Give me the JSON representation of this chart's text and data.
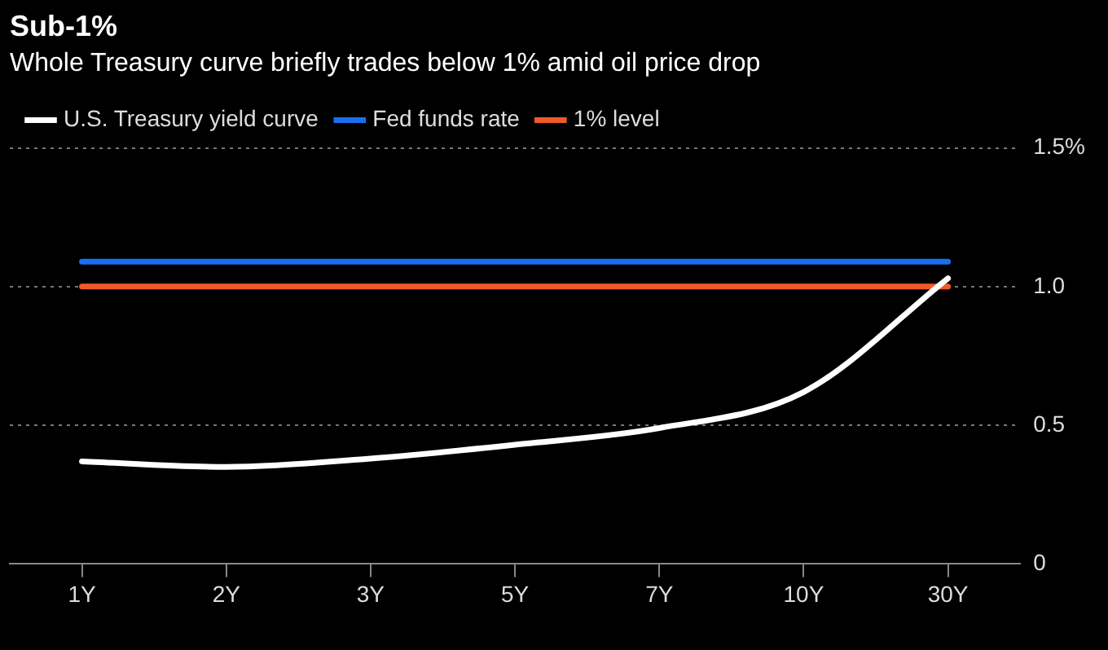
{
  "chart_data": {
    "type": "line",
    "title": "Sub-1%",
    "subtitle": "Whole Treasury curve briefly trades below 1% amid oil price drop",
    "categories": [
      "1Y",
      "2Y",
      "3Y",
      "5Y",
      "7Y",
      "10Y",
      "30Y"
    ],
    "series": [
      {
        "name": "U.S. Treasury yield curve",
        "color": "#ffffff",
        "values": [
          0.37,
          0.35,
          0.38,
          0.43,
          0.49,
          0.62,
          1.03
        ]
      },
      {
        "name": "Fed funds rate",
        "color": "#1a6ff0",
        "values": [
          1.09,
          1.09,
          1.09,
          1.09,
          1.09,
          1.09,
          1.09
        ]
      },
      {
        "name": "1% level",
        "color": "#f05a2a",
        "values": [
          1,
          1,
          1,
          1,
          1,
          1,
          1
        ]
      }
    ],
    "ylim": [
      0,
      1.5
    ],
    "yticks": [
      0,
      0.5,
      {
        "value": 1,
        "label": "1.0"
      },
      {
        "value": 1.5,
        "label": "1.5%"
      }
    ],
    "grid": "y",
    "legend": "top left",
    "marker": "none",
    "line_style": "solid"
  }
}
